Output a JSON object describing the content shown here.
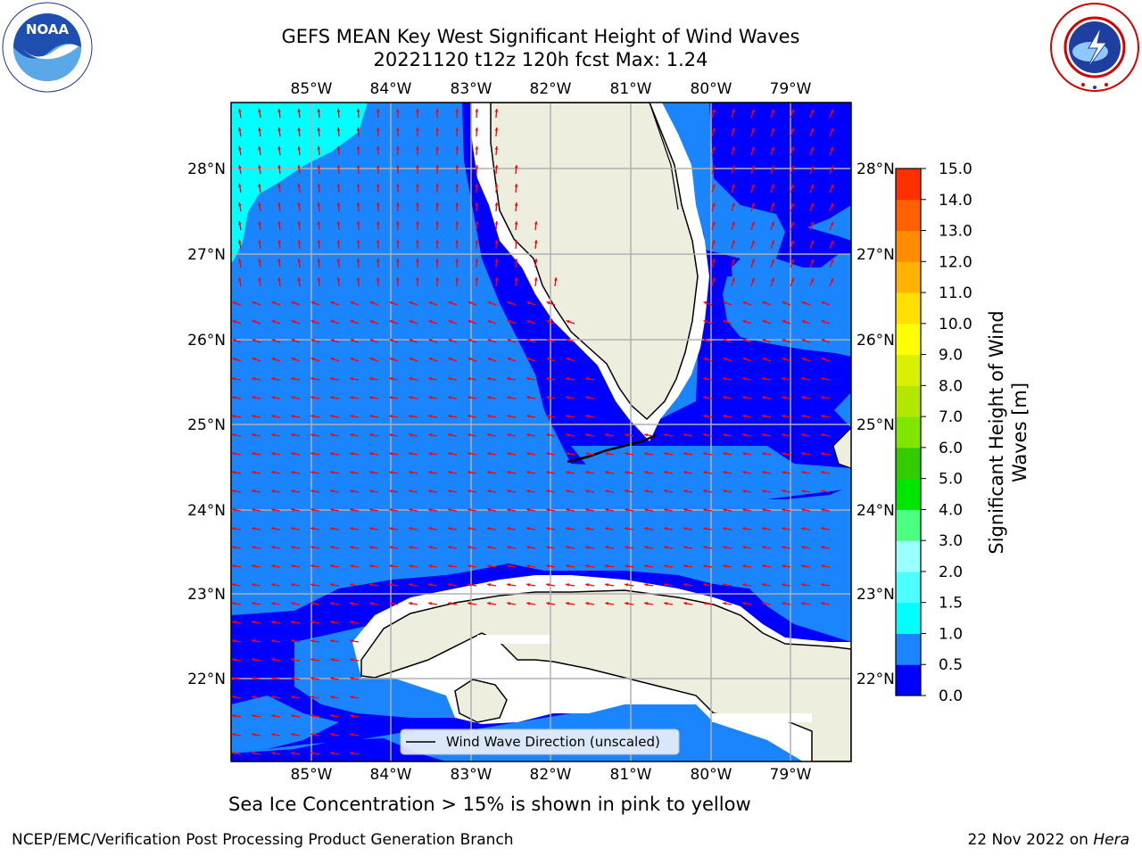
{
  "title": {
    "line1": "GEFS MEAN Key West Significant Height of Wind Waves",
    "line2": "20221120 t12z 120h fcst   Max: 1.24"
  },
  "logos": {
    "left": {
      "text": "NOAA",
      "ring_text": "NATIONAL OCEANIC AND ATMOSPHERIC ADMINISTRATION · U.S. DEPARTMENT OF COMMERCE"
    },
    "right": {
      "ring_text": "NATIONAL WEATHER SERVICE"
    }
  },
  "map": {
    "lon_labels": [
      "85°W",
      "84°W",
      "83°W",
      "82°W",
      "81°W",
      "80°W",
      "79°W"
    ],
    "lat_labels": [
      "28°N",
      "27°N",
      "26°N",
      "25°N",
      "24°N",
      "23°N",
      "22°N"
    ],
    "legend_label": "Wind Wave Direction (unscaled)",
    "colors": {
      "land": "#eeeedf",
      "water_low": "#0000ff",
      "water_mid": "#1a85ff",
      "water_high": "#00ffff",
      "arrow": "#ff0000",
      "grid": "#b0b0b0"
    }
  },
  "colorbar": {
    "label_line1": "Significant Height of Wind",
    "label_line2": "Waves [m]",
    "ticks": [
      "15.0",
      "14.0",
      "13.0",
      "12.0",
      "11.0",
      "10.0",
      "9.0",
      "8.0",
      "7.0",
      "6.0",
      "5.0",
      "4.0",
      "3.0",
      "2.0",
      "1.5",
      "1.0",
      "0.5",
      "0.0"
    ],
    "colors_bottom_to_top": [
      "#0000ff",
      "#1a85ff",
      "#00ffff",
      "#4dffff",
      "#99ffff",
      "#4dff80",
      "#00e600",
      "#33cc00",
      "#80e600",
      "#b3e600",
      "#d9f000",
      "#ffff00",
      "#ffe000",
      "#ffb300",
      "#ff8c00",
      "#ff6000",
      "#ff3000"
    ]
  },
  "note": "Sea Ice Concentration > 15% is shown in pink to yellow",
  "footer": {
    "left": "NCEP/EMC/Verification Post Processing Product Generation Branch",
    "date": "22 Nov 2022 on ",
    "host": "Hera"
  }
}
